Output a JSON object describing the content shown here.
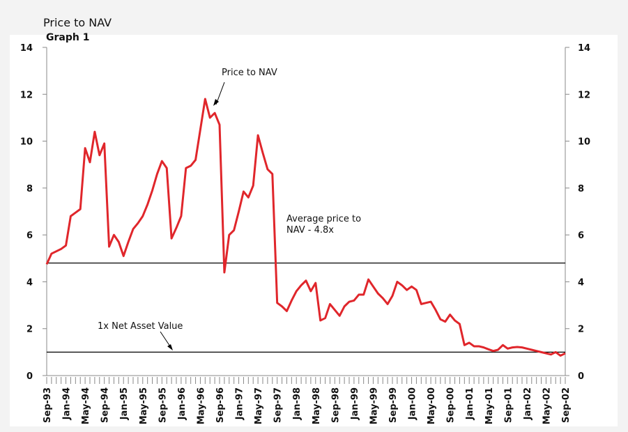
{
  "chart_data": {
    "type": "line",
    "title": "Price to NAV",
    "subtitle": "Graph 1",
    "categories": [
      "Sep-93",
      null,
      null,
      null,
      "Jan-94",
      null,
      null,
      null,
      "May-94",
      null,
      null,
      null,
      "Sep-94",
      null,
      null,
      null,
      "Jan-95",
      null,
      null,
      null,
      "May-95",
      null,
      null,
      null,
      "Sep-95",
      null,
      null,
      null,
      "Jan-96",
      null,
      null,
      null,
      "May-96",
      null,
      null,
      null,
      "Sep-96",
      null,
      null,
      null,
      "Jan-97",
      null,
      null,
      null,
      "May-97",
      null,
      null,
      null,
      "Sep-97",
      null,
      null,
      null,
      "Jan-98",
      null,
      null,
      null,
      "May-98",
      null,
      null,
      null,
      "Sep-98",
      null,
      null,
      null,
      "Jan-99",
      null,
      null,
      null,
      "May-99",
      null,
      null,
      null,
      "Sep-99",
      null,
      null,
      null,
      "Jan-00",
      null,
      null,
      null,
      "May-00",
      null,
      null,
      null,
      "Sep-00",
      null,
      null,
      null,
      "Jan-01",
      null,
      null,
      null,
      "May-01",
      null,
      null,
      null,
      "Sep-01",
      null,
      null,
      null,
      "Jan-02",
      null,
      null,
      null,
      "May-02",
      null,
      null,
      null,
      "Sep-02"
    ],
    "series": [
      {
        "name": "Price to NAV",
        "color": "#e0262b",
        "values": [
          4.75,
          5.2,
          5.3,
          5.4,
          5.55,
          6.8,
          6.95,
          7.1,
          9.7,
          9.1,
          10.4,
          9.4,
          9.9,
          5.5,
          6.0,
          5.7,
          5.1,
          5.7,
          6.25,
          6.5,
          6.8,
          7.3,
          7.9,
          8.6,
          9.15,
          8.85,
          5.85,
          6.3,
          6.8,
          8.85,
          8.95,
          9.2,
          10.5,
          11.8,
          11.0,
          11.2,
          10.7,
          4.4,
          6.0,
          6.2,
          7.0,
          7.85,
          7.6,
          8.1,
          10.25,
          9.5,
          8.8,
          8.6,
          3.1,
          2.95,
          2.75,
          3.2,
          3.6,
          3.85,
          4.05,
          3.6,
          3.95,
          2.35,
          2.45,
          3.05,
          2.8,
          2.55,
          2.95,
          3.15,
          3.2,
          3.45,
          3.45,
          4.1,
          3.8,
          3.5,
          3.3,
          3.05,
          3.4,
          4.0,
          3.85,
          3.65,
          3.8,
          3.65,
          3.05,
          3.1,
          3.15,
          2.8,
          2.4,
          2.3,
          2.6,
          2.35,
          2.2,
          1.3,
          1.4,
          1.25,
          1.25,
          1.2,
          1.12,
          1.05,
          1.1,
          1.3,
          1.15,
          1.2,
          1.22,
          1.2,
          1.15,
          1.1,
          1.05,
          1.0,
          0.95,
          0.9,
          1.0,
          0.85,
          0.95
        ]
      }
    ],
    "ylim": [
      0,
      14
    ],
    "yticks": [
      0,
      2,
      4,
      6,
      8,
      10,
      12,
      14
    ],
    "y2lim": [
      0,
      14
    ],
    "y2ticks": [
      0,
      2,
      4,
      6,
      8,
      10,
      12,
      14
    ],
    "reference_lines": [
      {
        "value": 4.8,
        "label": [
          "Average price to",
          "NAV - 4.8x"
        ]
      },
      {
        "value": 1,
        "label": [
          "1x Net Asset Value"
        ]
      }
    ],
    "annotations": [
      "Price to NAV"
    ]
  }
}
